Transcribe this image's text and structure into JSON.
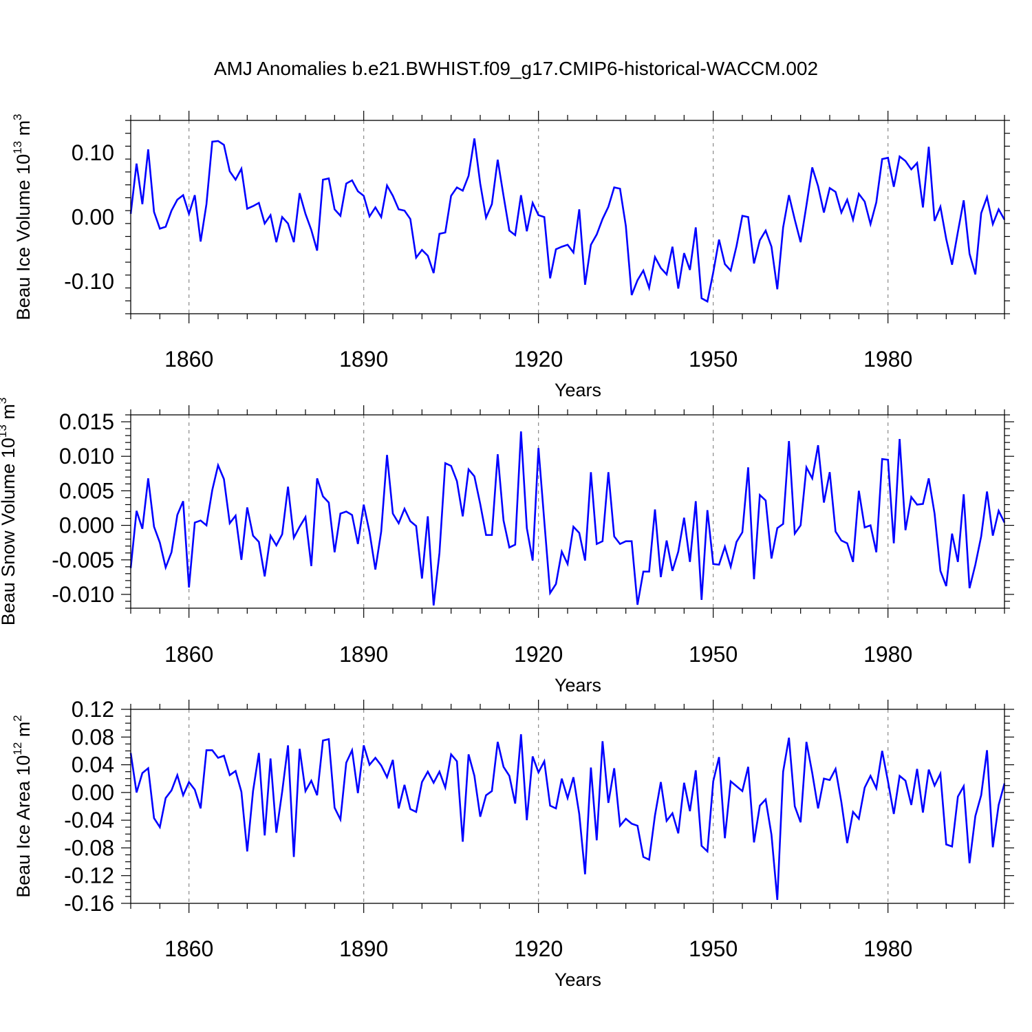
{
  "title": "AMJ Anomalies b.e21.BWHIST.f09_g17.CMIP6-historical-WACCM.002",
  "colors": {
    "line": "#0000ff",
    "axis": "#000000",
    "grid": "#888888"
  },
  "chart_data": [
    {
      "type": "line",
      "name": "Beau Ice Volume",
      "ylabel": "Beau Ice Volume 10¹³ m³",
      "ylabel_parts": {
        "base": "Beau Ice Volume 10",
        "exp1": "13",
        "mid": " m",
        "exp2": "3"
      },
      "xlabel": "Years",
      "xlim": [
        1850,
        2000
      ],
      "ylim": [
        -0.15,
        0.15
      ],
      "x_start": 1850,
      "xticks": [
        1860,
        1890,
        1920,
        1950,
        1980
      ],
      "xtick_labels": [
        "1860",
        "1890",
        "1920",
        "1950",
        "1980"
      ],
      "yticks": [
        -0.1,
        0.0,
        0.1
      ],
      "ytick_labels": [
        "-0.10",
        "0.00",
        "0.10"
      ],
      "yminor_step": 0.02,
      "grid": "vertical dashed at major x ticks",
      "values": [
        0.005,
        0.083,
        0.02,
        0.105,
        0.008,
        -0.018,
        -0.015,
        0.01,
        0.027,
        0.034,
        0.005,
        0.034,
        -0.038,
        0.02,
        0.117,
        0.118,
        0.112,
        0.071,
        0.058,
        0.075,
        0.013,
        0.017,
        0.022,
        -0.01,
        0.003,
        -0.039,
        0.0,
        -0.01,
        -0.039,
        0.037,
        0.005,
        -0.02,
        -0.052,
        0.058,
        0.06,
        0.012,
        0.002,
        0.052,
        0.057,
        0.04,
        0.033,
        0.001,
        0.015,
        0.0,
        0.049,
        0.033,
        0.012,
        0.01,
        -0.003,
        -0.063,
        -0.051,
        -0.06,
        -0.087,
        -0.026,
        -0.024,
        0.033,
        0.046,
        0.041,
        0.064,
        0.122,
        0.052,
        -0.001,
        0.02,
        0.089,
        0.033,
        -0.021,
        -0.028,
        0.034,
        -0.022,
        0.022,
        0.003,
        0.0,
        -0.095,
        -0.05,
        -0.046,
        -0.043,
        -0.055,
        0.012,
        -0.105,
        -0.043,
        -0.027,
        -0.003,
        0.016,
        0.046,
        0.044,
        -0.014,
        -0.121,
        -0.098,
        -0.083,
        -0.11,
        -0.062,
        -0.079,
        -0.089,
        -0.046,
        -0.111,
        -0.056,
        -0.082,
        -0.016,
        -0.126,
        -0.131,
        -0.086,
        -0.035,
        -0.073,
        -0.083,
        -0.045,
        0.002,
        0.0,
        -0.072,
        -0.036,
        -0.021,
        -0.046,
        -0.112,
        -0.016,
        0.034,
        -0.004,
        -0.039,
        0.018,
        0.077,
        0.048,
        0.007,
        0.045,
        0.039,
        0.007,
        0.027,
        -0.004,
        0.036,
        0.024,
        -0.011,
        0.023,
        0.09,
        0.092,
        0.047,
        0.094,
        0.087,
        0.074,
        0.084,
        0.015,
        0.109,
        -0.006,
        0.016,
        -0.034,
        -0.074,
        -0.023,
        0.026,
        -0.057,
        -0.089,
        0.006,
        0.031,
        -0.011,
        0.012,
        -0.004
      ]
    },
    {
      "type": "line",
      "name": "Beau Snow Volume",
      "ylabel": "Beau Snow Volume 10¹³ m³",
      "ylabel_parts": {
        "base": "Beau Snow Volume 10",
        "exp1": "13",
        "mid": " m",
        "exp2": "3"
      },
      "xlabel": "Years",
      "xlim": [
        1850,
        2000
      ],
      "ylim": [
        -0.012,
        0.016
      ],
      "x_start": 1850,
      "xticks": [
        1860,
        1890,
        1920,
        1950,
        1980
      ],
      "xtick_labels": [
        "1860",
        "1890",
        "1920",
        "1950",
        "1980"
      ],
      "yticks": [
        -0.01,
        -0.005,
        0.0,
        0.005,
        0.01,
        0.015
      ],
      "ytick_labels": [
        "-0.010",
        "-0.005",
        "0.000",
        "0.005",
        "0.010",
        "0.015"
      ],
      "yminor_step": 0.001,
      "grid": "vertical dashed at major x ticks",
      "values": [
        -0.0062,
        0.0021,
        -0.0005,
        0.0068,
        -0.0002,
        -0.0025,
        -0.0061,
        -0.0039,
        0.0015,
        0.0035,
        -0.009,
        0.0004,
        0.0007,
        0.0,
        0.0051,
        0.0087,
        0.0067,
        0.0003,
        0.0014,
        -0.005,
        0.0026,
        -0.0015,
        -0.0024,
        -0.0074,
        -0.0015,
        -0.0029,
        -0.0013,
        0.0056,
        -0.0018,
        -0.0002,
        0.0012,
        -0.0059,
        0.0068,
        0.0042,
        0.0033,
        -0.0039,
        0.0017,
        0.002,
        0.0015,
        -0.0027,
        0.003,
        -0.001,
        -0.0064,
        -0.0009,
        0.0102,
        0.0017,
        0.0003,
        0.0024,
        0.0006,
        -0.0001,
        -0.0077,
        0.0013,
        -0.0116,
        -0.004,
        0.009,
        0.0086,
        0.0064,
        0.0013,
        0.0081,
        0.0071,
        0.0031,
        -0.0014,
        -0.0014,
        0.0103,
        0.0007,
        -0.0032,
        -0.0028,
        0.0136,
        -0.0004,
        -0.0051,
        0.0112,
        0.0006,
        -0.0098,
        -0.0085,
        -0.0038,
        -0.0056,
        -0.0002,
        -0.0011,
        -0.0051,
        0.0077,
        -0.0027,
        -0.0023,
        0.0077,
        -0.0016,
        -0.0027,
        -0.0023,
        -0.0023,
        -0.0115,
        -0.0067,
        -0.0067,
        0.0023,
        -0.0075,
        -0.0022,
        -0.0066,
        -0.0038,
        0.0011,
        -0.0053,
        0.0035,
        -0.0108,
        0.0022,
        -0.0056,
        -0.0057,
        -0.0031,
        -0.006,
        -0.0024,
        -0.001,
        0.0084,
        -0.0078,
        0.0044,
        0.0036,
        -0.0048,
        -0.0004,
        0.0002,
        0.0122,
        -0.0012,
        0.0,
        0.0084,
        0.0068,
        0.0116,
        0.0033,
        0.0077,
        -0.0009,
        -0.0022,
        -0.0026,
        -0.0053,
        0.005,
        -0.0003,
        0.0,
        -0.0039,
        0.0096,
        0.0095,
        -0.0026,
        0.0125,
        -0.0007,
        0.0041,
        0.003,
        0.0031,
        0.0068,
        0.0017,
        -0.0066,
        -0.0088,
        -0.0012,
        -0.0053,
        0.0045,
        -0.0091,
        -0.0057,
        -0.0016,
        0.0049,
        -0.0015,
        0.0021,
        0.0004
      ]
    },
    {
      "type": "line",
      "name": "Beau Ice Area",
      "ylabel": "Beau Ice Area 10¹² m²",
      "ylabel_parts": {
        "base": "Beau Ice Area 10",
        "exp1": "12",
        "mid": " m",
        "exp2": "2"
      },
      "xlabel": "Years",
      "xlim": [
        1850,
        2000
      ],
      "ylim": [
        -0.16,
        0.12
      ],
      "x_start": 1850,
      "xticks": [
        1860,
        1890,
        1920,
        1950,
        1980
      ],
      "xtick_labels": [
        "1860",
        "1890",
        "1920",
        "1950",
        "1980"
      ],
      "yticks": [
        -0.16,
        -0.12,
        -0.08,
        -0.04,
        0.0,
        0.04,
        0.08,
        0.12
      ],
      "ytick_labels": [
        "-0.16",
        "-0.12",
        "-0.08",
        "-0.04",
        "0.00",
        "0.04",
        "0.08",
        "0.12"
      ],
      "yminor_step": 0.01,
      "grid": "vertical dashed at major x ticks",
      "values": [
        0.057,
        0.0,
        0.028,
        0.035,
        -0.037,
        -0.05,
        -0.008,
        0.003,
        0.025,
        -0.004,
        0.015,
        0.004,
        -0.023,
        0.061,
        0.061,
        0.05,
        0.053,
        0.025,
        0.031,
        0.001,
        -0.085,
        0.002,
        0.057,
        -0.062,
        0.049,
        -0.058,
        0.001,
        0.068,
        -0.093,
        0.063,
        0.002,
        0.017,
        -0.004,
        0.075,
        0.077,
        -0.022,
        -0.039,
        0.043,
        0.061,
        -0.001,
        0.068,
        0.04,
        0.05,
        0.039,
        0.022,
        0.047,
        -0.023,
        0.011,
        -0.024,
        -0.028,
        0.015,
        0.03,
        0.014,
        0.03,
        0.007,
        0.055,
        0.045,
        -0.071,
        0.055,
        0.024,
        -0.035,
        -0.004,
        0.002,
        0.073,
        0.037,
        0.024,
        -0.016,
        0.084,
        -0.04,
        0.052,
        0.029,
        0.045,
        -0.019,
        -0.023,
        0.02,
        -0.008,
        0.022,
        -0.031,
        -0.118,
        0.036,
        -0.069,
        0.074,
        -0.015,
        0.035,
        -0.048,
        -0.038,
        -0.045,
        -0.048,
        -0.093,
        -0.097,
        -0.033,
        0.015,
        -0.041,
        -0.03,
        -0.059,
        0.014,
        -0.027,
        0.032,
        -0.077,
        -0.085,
        0.016,
        0.051,
        -0.066,
        0.016,
        0.009,
        0.002,
        0.037,
        -0.072,
        -0.019,
        -0.01,
        -0.061,
        -0.155,
        0.03,
        0.079,
        -0.02,
        -0.043,
        0.073,
        0.028,
        -0.023,
        0.02,
        0.018,
        0.034,
        -0.014,
        -0.073,
        -0.028,
        -0.038,
        0.007,
        0.024,
        0.006,
        0.06,
        0.016,
        -0.031,
        0.024,
        0.017,
        -0.018,
        0.034,
        -0.029,
        0.033,
        0.01,
        0.027,
        -0.075,
        -0.078,
        -0.006,
        0.009,
        -0.102,
        -0.034,
        -0.004,
        0.061,
        -0.079,
        -0.018,
        0.013
      ]
    }
  ]
}
